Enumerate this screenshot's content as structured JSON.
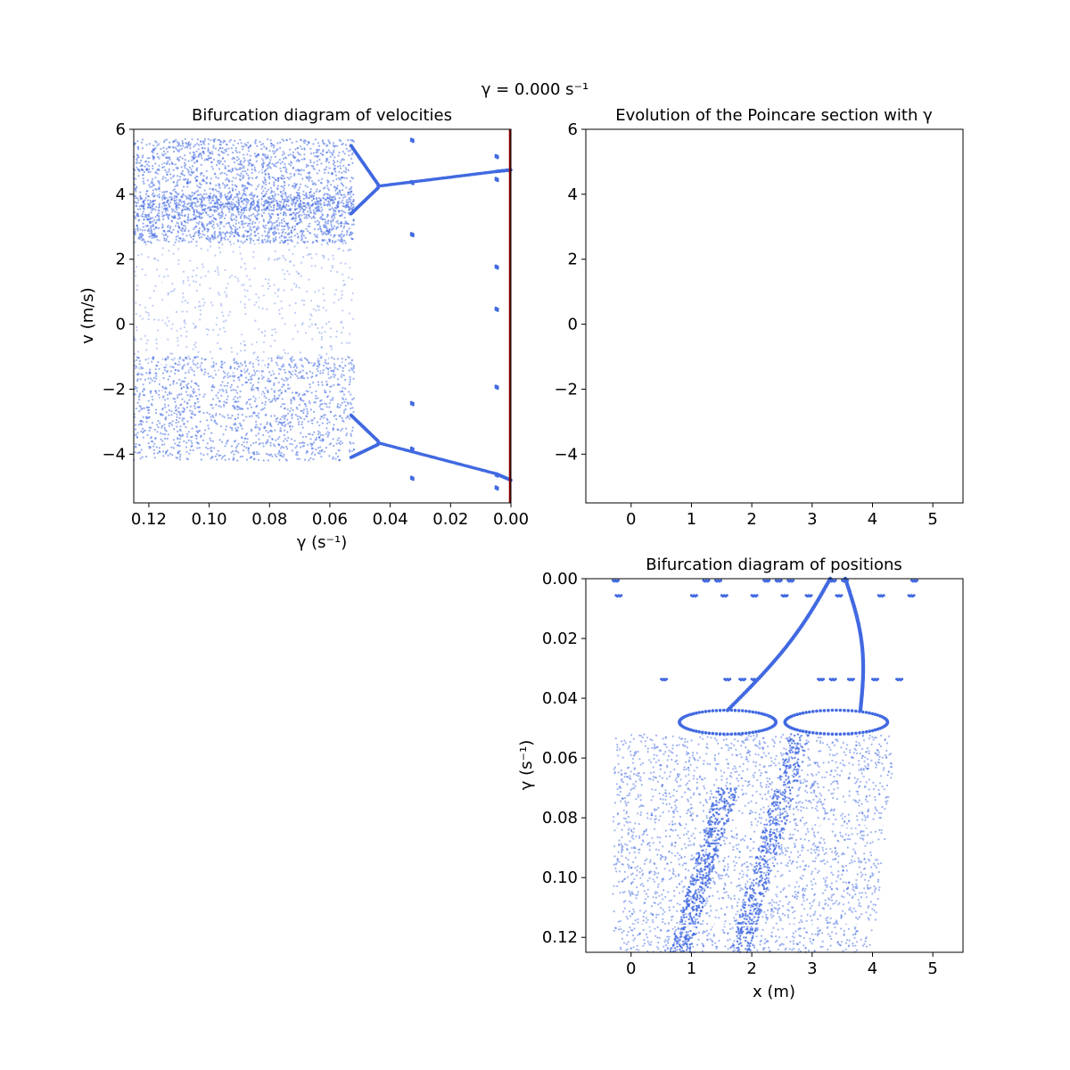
{
  "figure": {
    "suptitle": "γ = 0.000 s⁻¹",
    "point_color": "#4169e1",
    "marker_color": "#8b0000"
  },
  "chart_data": [
    {
      "id": "velocities",
      "type": "scatter",
      "title": "Bifurcation diagram of velocities",
      "xlabel": "γ (s⁻¹)",
      "ylabel": "v (m/s)",
      "xlim": [
        0.125,
        0.0
      ],
      "ylim": [
        -5.5,
        6.0
      ],
      "xticks": [
        0.12,
        0.1,
        0.08,
        0.06,
        0.04,
        0.02,
        0.0
      ],
      "xtick_labels": [
        "0.12",
        "0.10",
        "0.08",
        "0.06",
        "0.04",
        "0.02",
        "0.00"
      ],
      "yticks": [
        -4,
        -2,
        0,
        2,
        4,
        6
      ],
      "ytick_labels": [
        "−4",
        "−2",
        "0",
        "2",
        "4",
        "6"
      ],
      "current_gamma": 0.0,
      "chaos_bands": [
        {
          "gamma": [
            0.125,
            0.052
          ],
          "v": [
            3.5,
            5.7
          ],
          "density": "high"
        },
        {
          "gamma": [
            0.125,
            0.052
          ],
          "v": [
            2.5,
            4.0
          ],
          "density": "high"
        },
        {
          "gamma": [
            0.125,
            0.052
          ],
          "v": [
            -1.5,
            2.5
          ],
          "density": "low"
        },
        {
          "gamma": [
            0.125,
            0.052
          ],
          "v": [
            -4.2,
            -1.0
          ],
          "density": "high"
        }
      ],
      "periodic_branches": [
        {
          "gamma": [
            0.053,
            0.044
          ],
          "v_start": 5.5,
          "v_end": 4.3
        },
        {
          "gamma": [
            0.053,
            0.044
          ],
          "v_start": 3.4,
          "v_end": 4.2
        },
        {
          "gamma": [
            0.044,
            0.005
          ],
          "v_start": 4.25,
          "v_end": 4.7
        },
        {
          "gamma": [
            0.005,
            0.0
          ],
          "v_start": 4.7,
          "v_end": 4.75
        },
        {
          "gamma": [
            0.053,
            0.044
          ],
          "v_start": -2.8,
          "v_end": -3.6
        },
        {
          "gamma": [
            0.053,
            0.044
          ],
          "v_start": -4.1,
          "v_end": -3.7
        },
        {
          "gamma": [
            0.044,
            0.005
          ],
          "v_start": -3.65,
          "v_end": -4.6
        },
        {
          "gamma": [
            0.005,
            0.0
          ],
          "v_start": -4.6,
          "v_end": -4.8
        }
      ],
      "periodic_windows": [
        {
          "gamma": 0.033,
          "v": [
            5.7,
            4.4,
            2.8,
            -2.4,
            -3.8,
            -4.7
          ]
        },
        {
          "gamma": 0.005,
          "v": [
            5.2,
            4.5,
            1.8,
            0.5,
            -1.9,
            -4.6,
            -5.0
          ]
        }
      ]
    },
    {
      "id": "poincare",
      "type": "scatter",
      "title": "Evolution of the Poincare section with γ",
      "xlim": [
        -0.75,
        5.5
      ],
      "ylim": [
        -5.5,
        6.0
      ],
      "xticks": [
        0,
        1,
        2,
        3,
        4,
        5
      ],
      "xtick_labels": [
        "0",
        "1",
        "2",
        "3",
        "4",
        "5"
      ],
      "yticks": [
        -4,
        -2,
        0,
        2,
        4,
        6
      ],
      "ytick_labels": [
        "−4",
        "−2",
        "0",
        "2",
        "4",
        "6"
      ],
      "points": []
    },
    {
      "id": "positions",
      "type": "scatter",
      "title": "Bifurcation diagram of positions",
      "xlabel": "x (m)",
      "ylabel": "γ (s⁻¹)",
      "xlim": [
        -0.75,
        5.5
      ],
      "ylim": [
        0.125,
        0.0
      ],
      "xticks": [
        0,
        1,
        2,
        3,
        4,
        5
      ],
      "xtick_labels": [
        "0",
        "1",
        "2",
        "3",
        "4",
        "5"
      ],
      "yticks": [
        0.0,
        0.02,
        0.04,
        0.06,
        0.08,
        0.1,
        0.12
      ],
      "ytick_labels": [
        "0.00",
        "0.02",
        "0.04",
        "0.06",
        "0.08",
        "0.10",
        "0.12"
      ],
      "chaos_region": {
        "gamma": [
          0.052,
          0.125
        ],
        "x_left": [
          -0.3,
          -0.3
        ],
        "x_right": [
          4.4,
          4.0
        ]
      },
      "dense_streaks": [
        {
          "x_start": 1.8,
          "x_end": 2.8,
          "gamma_start": 0.125,
          "gamma_end": 0.052
        },
        {
          "x_start": 0.8,
          "x_end": 1.6,
          "gamma_start": 0.125,
          "gamma_end": 0.07
        }
      ],
      "periodic_branches": [
        {
          "x_start": 3.3,
          "x_end": 1.6,
          "gamma_start": 0.0,
          "gamma_end": 0.044
        },
        {
          "x_start": 3.55,
          "x_end": 3.8,
          "gamma_start": 0.0,
          "gamma_end": 0.044
        }
      ],
      "loops": [
        {
          "x_center": 1.6,
          "x_half_width": 0.8,
          "gamma_top": 0.044,
          "gamma_bottom": 0.052
        },
        {
          "x_center": 3.4,
          "x_half_width": 0.85,
          "gamma_top": 0.044,
          "gamma_bottom": 0.052
        }
      ],
      "windows": [
        {
          "gamma": 0.0,
          "x": [
            -0.3,
            1.2,
            1.4,
            2.2,
            2.4,
            2.6,
            3.3,
            3.5,
            4.65
          ]
        },
        {
          "gamma": 0.005,
          "x": [
            -0.25,
            1.0,
            1.5,
            2.0,
            2.5,
            2.9,
            3.4,
            4.1,
            4.6
          ]
        },
        {
          "gamma": 0.033,
          "x": [
            0.5,
            1.55,
            1.8,
            2.0,
            3.1,
            3.3,
            3.6,
            4.0,
            4.4
          ]
        }
      ]
    }
  ]
}
